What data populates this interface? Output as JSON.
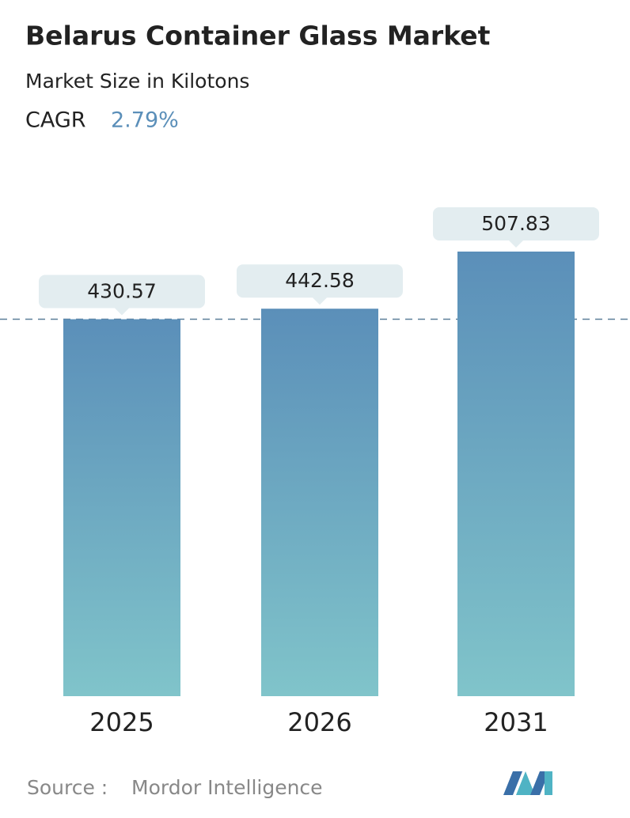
{
  "chart_data": {
    "type": "bar",
    "title": "Belarus Container Glass Market",
    "subtitle": "Market Size in Kilotons",
    "cagr_label": "CAGR",
    "cagr_value": "2.79%",
    "categories": [
      "2025",
      "2026",
      "2031"
    ],
    "values": [
      430.57,
      442.58,
      507.83
    ],
    "color": "#5b8fb9",
    "source_label": "Source :",
    "source": "Mordor Intelligence"
  }
}
